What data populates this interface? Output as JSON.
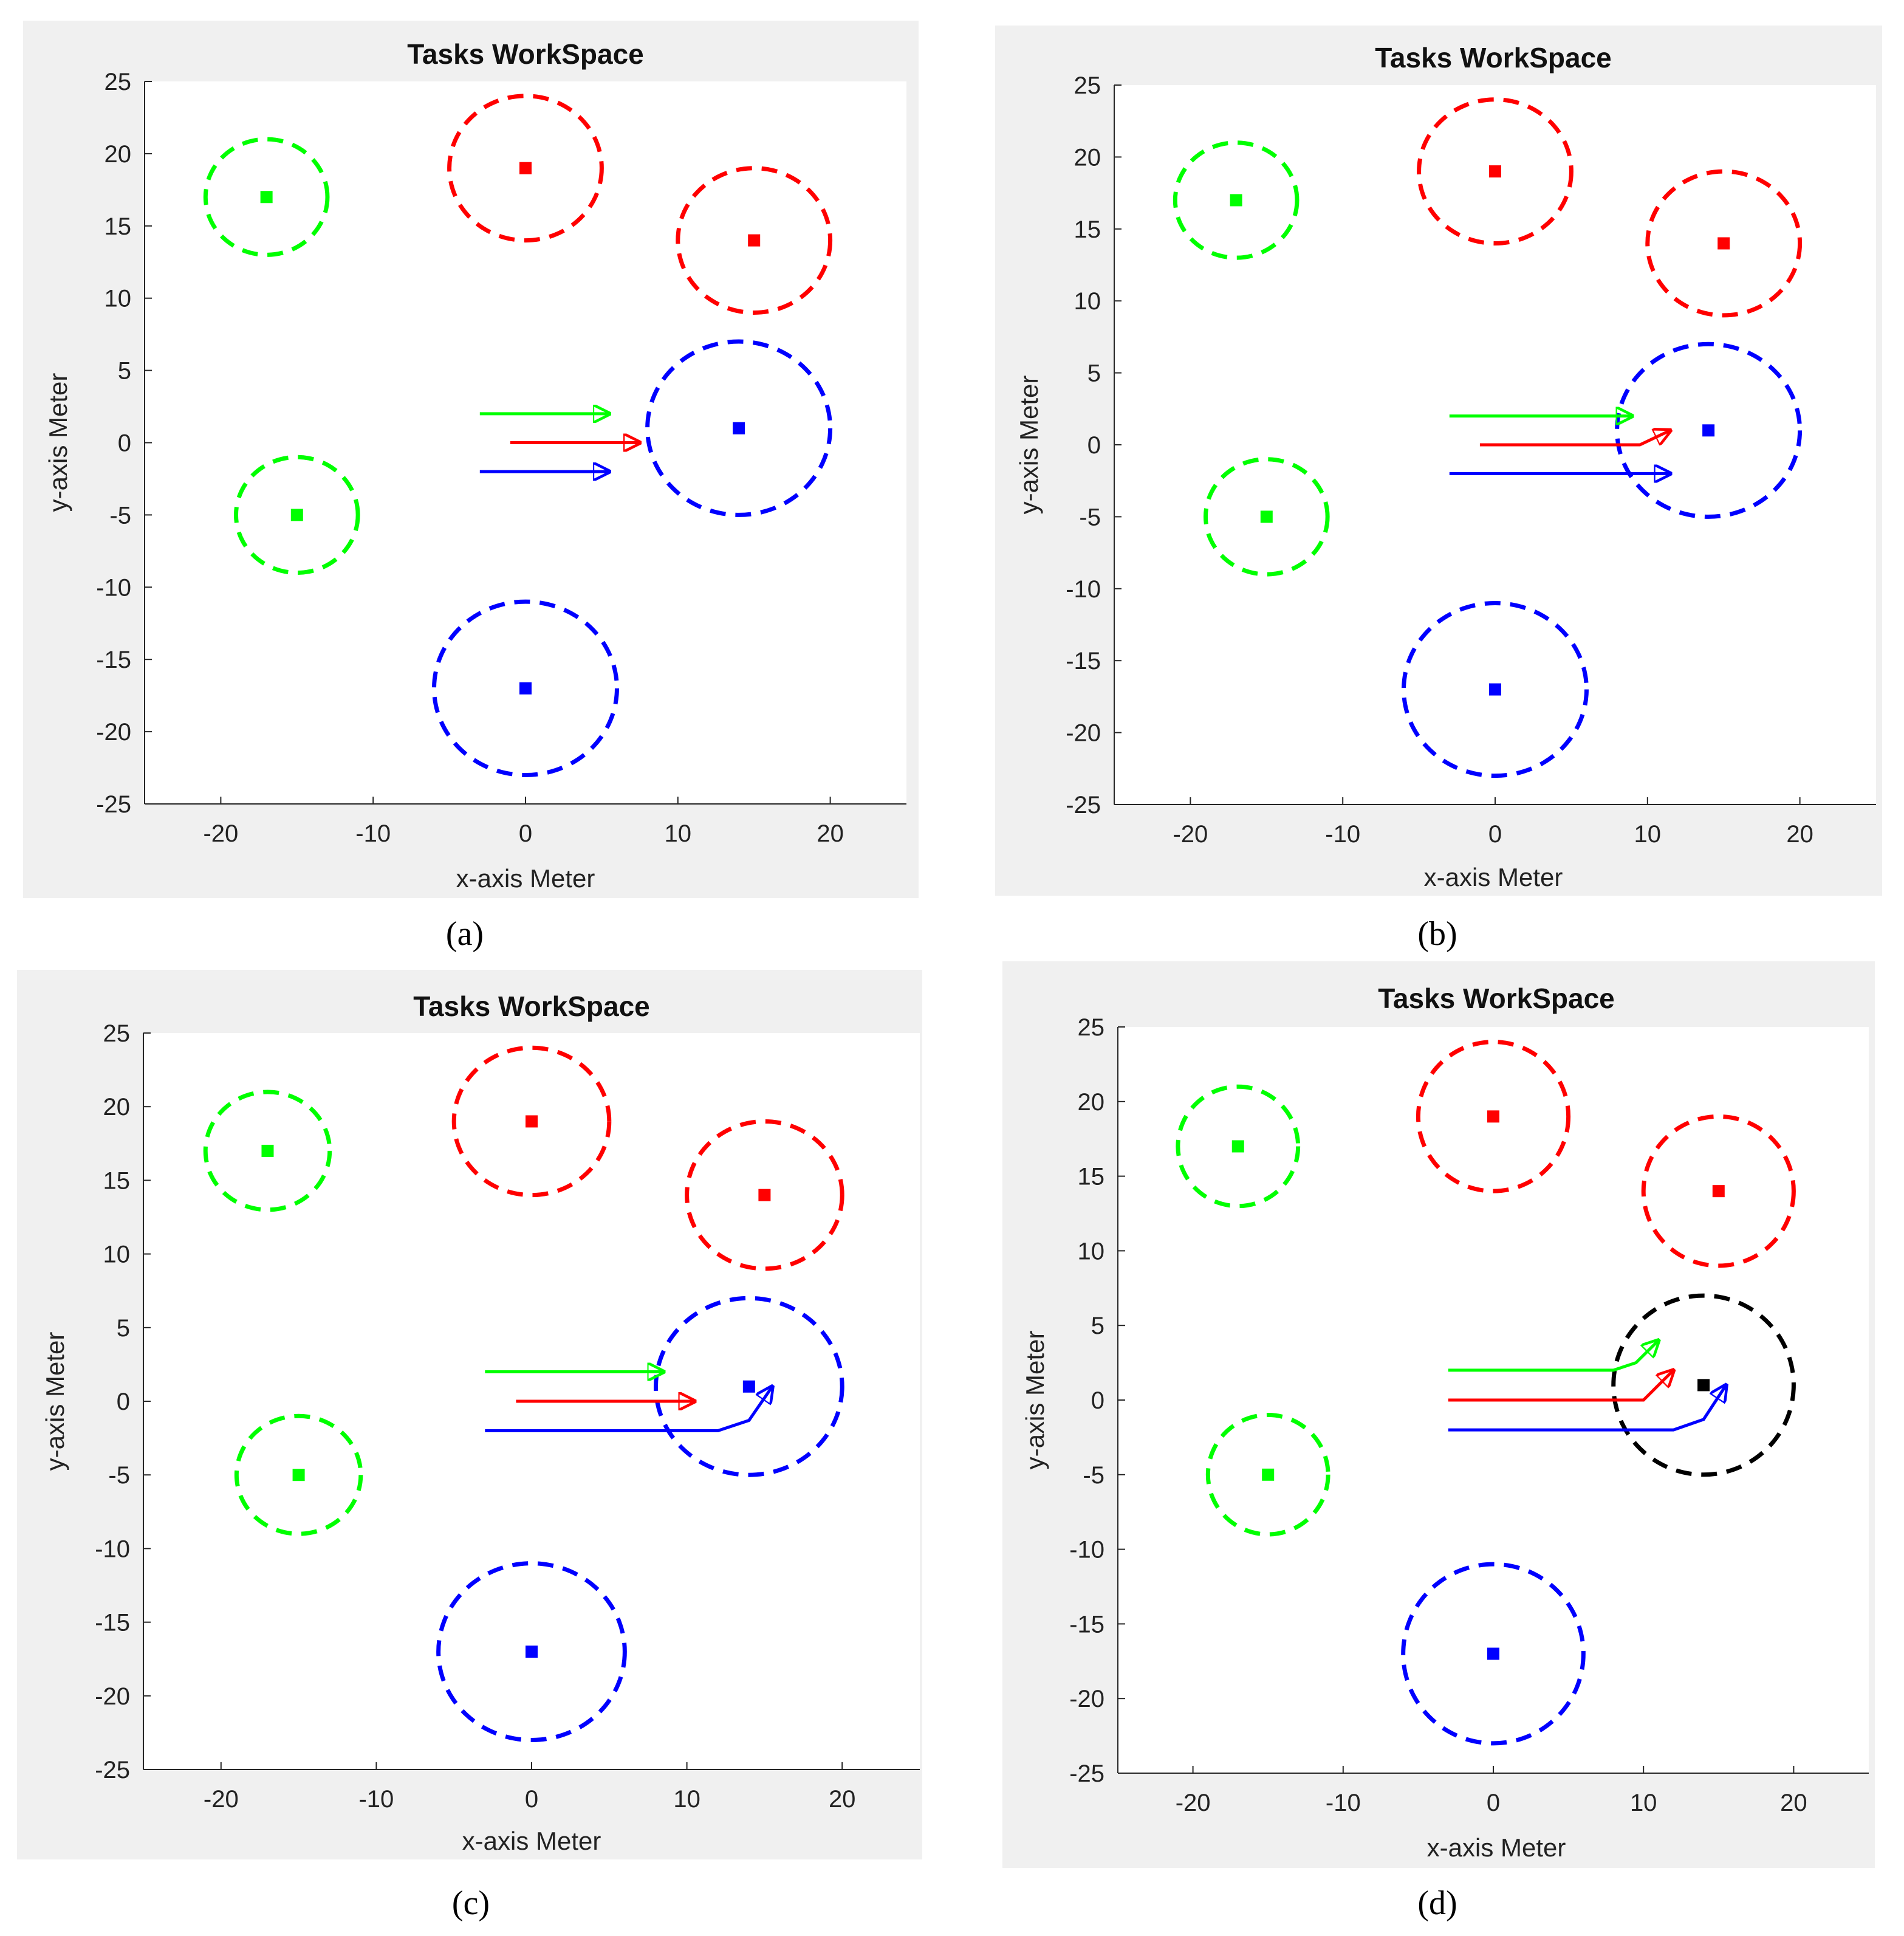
{
  "figure": {
    "panels": [
      {
        "caption": "(a)",
        "letter": "a"
      },
      {
        "caption": "(b)",
        "letter": "b"
      },
      {
        "caption": "(c)",
        "letter": "c"
      },
      {
        "caption": "(d)",
        "letter": "d"
      }
    ]
  },
  "colors": {
    "green": "#00ff00",
    "red": "#ff0000",
    "blue": "#0000ff",
    "black": "#000000",
    "panel_bg": "#f0f0f0",
    "plot_bg": "#ffffff"
  },
  "chart_data": [
    {
      "type": "scatter",
      "title": "Tasks WorkSpace",
      "xlabel": "x-axis  Meter",
      "ylabel": "y-axis  Meter",
      "xlim": [
        -25,
        25
      ],
      "ylim": [
        -25,
        25
      ],
      "xticks": [
        -20,
        -10,
        0,
        10,
        20
      ],
      "yticks": [
        25,
        20,
        15,
        10,
        5,
        0,
        -5,
        -10,
        -15,
        -20,
        -25
      ],
      "tasks": [
        {
          "name": "green-task-1",
          "x": -17,
          "y": 17,
          "r": 4,
          "color": "green"
        },
        {
          "name": "green-task-2",
          "x": -15,
          "y": -5,
          "r": 4,
          "color": "green"
        },
        {
          "name": "red-task-1",
          "x": 0,
          "y": 19,
          "r": 5,
          "color": "red"
        },
        {
          "name": "red-task-2",
          "x": 15,
          "y": 14,
          "r": 5,
          "color": "red"
        },
        {
          "name": "blue-task-1",
          "x": 14,
          "y": 1,
          "r": 6,
          "color": "blue"
        },
        {
          "name": "blue-task-2",
          "x": 0,
          "y": -17,
          "r": 6,
          "color": "blue"
        }
      ],
      "trajectories": [
        {
          "name": "green-robot",
          "color": "green",
          "points": [
            [
              -3,
              2
            ],
            [
              5.5,
              2
            ]
          ]
        },
        {
          "name": "red-robot",
          "color": "red",
          "points": [
            [
              -1,
              0
            ],
            [
              7.5,
              0
            ]
          ]
        },
        {
          "name": "blue-robot",
          "color": "blue",
          "points": [
            [
              -3,
              -2
            ],
            [
              5.5,
              -2
            ]
          ]
        }
      ]
    },
    {
      "type": "scatter",
      "title": "Tasks WorkSpace",
      "xlabel": "x-axis  Meter",
      "ylabel": "y-axis  Meter",
      "xlim": [
        -25,
        25
      ],
      "ylim": [
        -25,
        25
      ],
      "xticks": [
        -20,
        -10,
        0,
        10,
        20
      ],
      "yticks": [
        25,
        20,
        15,
        10,
        5,
        0,
        -5,
        -10,
        -15,
        -20,
        -25
      ],
      "tasks": [
        {
          "name": "green-task-1",
          "x": -17,
          "y": 17,
          "r": 4,
          "color": "green"
        },
        {
          "name": "green-task-2",
          "x": -15,
          "y": -5,
          "r": 4,
          "color": "green"
        },
        {
          "name": "red-task-1",
          "x": 0,
          "y": 19,
          "r": 5,
          "color": "red"
        },
        {
          "name": "red-task-2",
          "x": 15,
          "y": 14,
          "r": 5,
          "color": "red"
        },
        {
          "name": "blue-task-1",
          "x": 14,
          "y": 1,
          "r": 6,
          "color": "blue"
        },
        {
          "name": "blue-task-2",
          "x": 0,
          "y": -17,
          "r": 6,
          "color": "blue"
        }
      ],
      "trajectories": [
        {
          "name": "green-robot",
          "color": "green",
          "points": [
            [
              -3,
              2
            ],
            [
              9,
              2
            ]
          ]
        },
        {
          "name": "red-robot",
          "color": "red",
          "points": [
            [
              -1,
              0
            ],
            [
              9.5,
              0
            ],
            [
              11.5,
              1
            ]
          ]
        },
        {
          "name": "blue-robot",
          "color": "blue",
          "points": [
            [
              -3,
              -2
            ],
            [
              11.5,
              -2
            ]
          ]
        }
      ]
    },
    {
      "type": "scatter",
      "title": "Tasks WorkSpace",
      "xlabel": "x-axis  Meter",
      "ylabel": "y-axis  Meter",
      "xlim": [
        -25,
        25
      ],
      "ylim": [
        -25,
        25
      ],
      "xticks": [
        -20,
        -10,
        0,
        10,
        20
      ],
      "yticks": [
        25,
        20,
        15,
        10,
        5,
        0,
        -5,
        -10,
        -15,
        -20,
        -25
      ],
      "tasks": [
        {
          "name": "green-task-1",
          "x": -17,
          "y": 17,
          "r": 4,
          "color": "green"
        },
        {
          "name": "green-task-2",
          "x": -15,
          "y": -5,
          "r": 4,
          "color": "green"
        },
        {
          "name": "red-task-1",
          "x": 0,
          "y": 19,
          "r": 5,
          "color": "red"
        },
        {
          "name": "red-task-2",
          "x": 15,
          "y": 14,
          "r": 5,
          "color": "red"
        },
        {
          "name": "blue-task-1",
          "x": 14,
          "y": 1,
          "r": 6,
          "color": "blue"
        },
        {
          "name": "blue-task-2",
          "x": 0,
          "y": -17,
          "r": 6,
          "color": "blue"
        }
      ],
      "trajectories": [
        {
          "name": "green-robot",
          "color": "green",
          "points": [
            [
              -3,
              2
            ],
            [
              8.5,
              2
            ]
          ]
        },
        {
          "name": "red-robot",
          "color": "red",
          "points": [
            [
              -1,
              0
            ],
            [
              10.5,
              0
            ]
          ]
        },
        {
          "name": "blue-robot",
          "color": "blue",
          "points": [
            [
              -3,
              -2
            ],
            [
              12,
              -2
            ],
            [
              14,
              -1.3
            ],
            [
              15.5,
              1
            ]
          ]
        }
      ]
    },
    {
      "type": "scatter",
      "title": "Tasks WorkSpace",
      "xlabel": "x-axis  Meter",
      "ylabel": "y-axis  Meter",
      "xlim": [
        -25,
        25
      ],
      "ylim": [
        -25,
        25
      ],
      "xticks": [
        -20,
        -10,
        0,
        10,
        20
      ],
      "yticks": [
        25,
        20,
        15,
        10,
        5,
        0,
        -5,
        -10,
        -15,
        -20,
        -25
      ],
      "tasks": [
        {
          "name": "green-task-1",
          "x": -17,
          "y": 17,
          "r": 4,
          "color": "green"
        },
        {
          "name": "green-task-2",
          "x": -15,
          "y": -5,
          "r": 4,
          "color": "green"
        },
        {
          "name": "red-task-1",
          "x": 0,
          "y": 19,
          "r": 5,
          "color": "red"
        },
        {
          "name": "red-task-2",
          "x": 15,
          "y": 14,
          "r": 5,
          "color": "red"
        },
        {
          "name": "blue-task-1",
          "x": 14,
          "y": 1,
          "r": 6,
          "color": "black"
        },
        {
          "name": "blue-task-2",
          "x": 0,
          "y": -17,
          "r": 6,
          "color": "blue"
        }
      ],
      "trajectories": [
        {
          "name": "green-robot",
          "color": "green",
          "points": [
            [
              -3,
              2
            ],
            [
              8,
              2
            ],
            [
              9.5,
              2.5
            ],
            [
              11,
              4
            ]
          ]
        },
        {
          "name": "red-robot",
          "color": "red",
          "points": [
            [
              -3,
              0
            ],
            [
              10,
              0
            ],
            [
              11,
              1
            ],
            [
              12,
              2
            ]
          ]
        },
        {
          "name": "blue-robot",
          "color": "blue",
          "points": [
            [
              -3,
              -2
            ],
            [
              12,
              -2
            ],
            [
              14,
              -1.3
            ],
            [
              15.5,
              1
            ]
          ]
        }
      ]
    }
  ]
}
